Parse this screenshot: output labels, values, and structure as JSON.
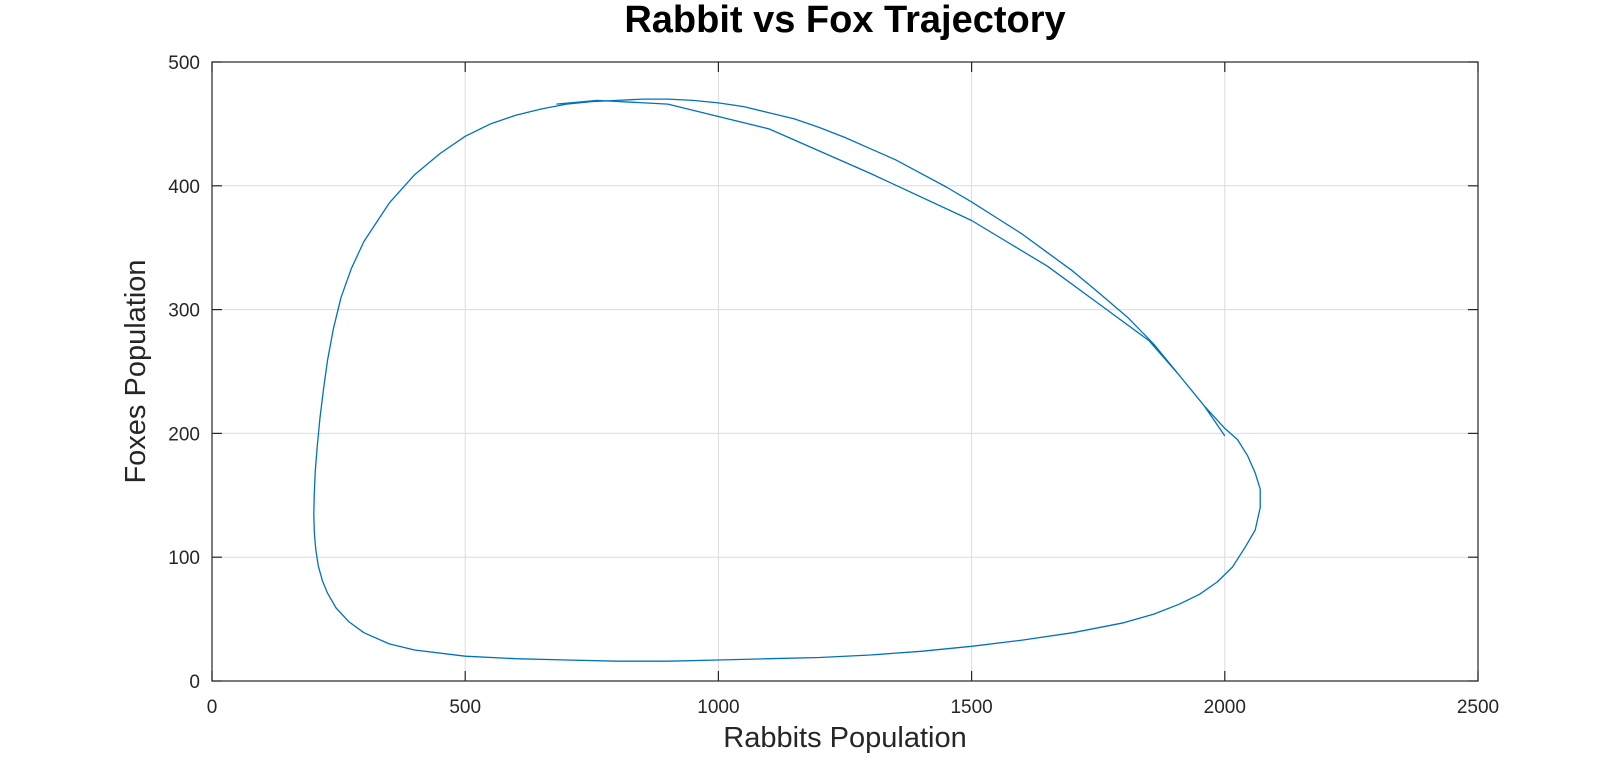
{
  "chart_data": {
    "type": "line",
    "title": "Rabbit vs Fox Trajectory",
    "xlabel": "Rabbits Population",
    "ylabel": "Foxes Population",
    "xlim": [
      0,
      2500
    ],
    "ylim": [
      0,
      500
    ],
    "xticks": [
      0,
      500,
      1000,
      1500,
      2000,
      2500
    ],
    "yticks": [
      0,
      100,
      200,
      300,
      400,
      500
    ],
    "xtick_labels": [
      "0",
      "500",
      "1000",
      "1500",
      "2000",
      "2500"
    ],
    "ytick_labels": [
      "0",
      "100",
      "200",
      "300",
      "400",
      "500"
    ],
    "grid": true,
    "line_color": "#0072bd",
    "series": [
      {
        "x": [
          2000,
          1960,
          1910,
          1860,
          1810,
          1750,
          1700,
          1650,
          1600,
          1550,
          1500,
          1450,
          1400,
          1350,
          1300,
          1250,
          1200,
          1150,
          1100,
          1050,
          1000,
          950,
          900,
          850,
          800,
          750,
          700,
          650,
          600,
          550,
          500,
          450,
          400,
          350,
          300,
          275,
          255,
          240,
          228,
          220,
          213,
          208,
          204,
          202,
          201,
          202,
          205,
          210,
          218,
          228,
          245,
          270,
          300,
          350,
          400,
          500,
          600,
          700,
          800,
          900,
          1000,
          1100,
          1200,
          1300,
          1400,
          1500,
          1600,
          1700,
          1800,
          1860,
          1910,
          1950,
          1985,
          2015,
          2040,
          2060,
          2070,
          2070,
          2060,
          2045,
          2025,
          2000,
          1960,
          1910,
          1850,
          1750,
          1650,
          1500,
          1300,
          1100,
          900,
          760,
          680
        ],
        "y": [
          198,
          222,
          247,
          272,
          293,
          314,
          331,
          346,
          361,
          374,
          387,
          399,
          410,
          421,
          430,
          439,
          447,
          454,
          459,
          464,
          467,
          469,
          470,
          470,
          469,
          468,
          466,
          462,
          457,
          450,
          440,
          426,
          409,
          386,
          355,
          333,
          310,
          285,
          259,
          235,
          212,
          190,
          170,
          152,
          135,
          120,
          106,
          93,
          81,
          71,
          59,
          48,
          39,
          30,
          25,
          20,
          18,
          17,
          16,
          16,
          17,
          18,
          19,
          21,
          24,
          28,
          33,
          39,
          47,
          54,
          62,
          70,
          80,
          92,
          108,
          122,
          140,
          155,
          168,
          182,
          195,
          204,
          222,
          247,
          275,
          305,
          335,
          372,
          410,
          446,
          466,
          469,
          466
        ]
      }
    ]
  }
}
